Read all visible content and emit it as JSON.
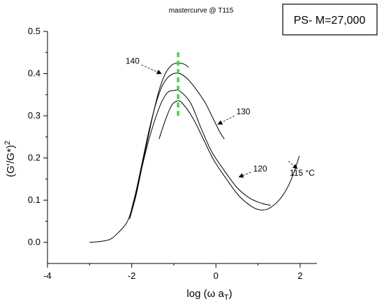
{
  "chart_data": {
    "type": "line",
    "title": "mastercurve @ T115",
    "box_label": "PS- M=27,000",
    "xlabel": {
      "main": "log (ω a",
      "sub": "T",
      "close": ")"
    },
    "ylabel": {
      "main": "(G'/G*)",
      "sup": "2"
    },
    "xlim": [
      -4,
      2.4
    ],
    "ylim": [
      -0.05,
      0.5
    ],
    "xticks": [
      -4,
      -2,
      0,
      2
    ],
    "xtick_labels": [
      "-4",
      "-2",
      "0",
      "2"
    ],
    "yticks": [
      0.0,
      0.1,
      0.2,
      0.3,
      0.4,
      0.5
    ],
    "ytick_labels": [
      "0.0",
      "0.1",
      "0.2",
      "0.3",
      "0.4",
      "0.5"
    ],
    "grid": false,
    "series": [
      {
        "name": "140",
        "color": "#000000",
        "points": [
          [
            -3.0,
            0.0
          ],
          [
            -2.75,
            0.002
          ],
          [
            -2.5,
            0.008
          ],
          [
            -2.3,
            0.025
          ],
          [
            -2.1,
            0.05
          ],
          [
            -1.95,
            0.095
          ],
          [
            -1.8,
            0.16
          ],
          [
            -1.65,
            0.23
          ],
          [
            -1.5,
            0.3
          ],
          [
            -1.35,
            0.36
          ],
          [
            -1.2,
            0.4
          ],
          [
            -1.05,
            0.42
          ],
          [
            -0.9,
            0.425
          ],
          [
            -0.75,
            0.422
          ],
          [
            -0.65,
            0.415
          ]
        ]
      },
      {
        "name": "130",
        "color": "#000000",
        "points": [
          [
            -2.05,
            0.06
          ],
          [
            -1.9,
            0.12
          ],
          [
            -1.75,
            0.19
          ],
          [
            -1.6,
            0.26
          ],
          [
            -1.45,
            0.32
          ],
          [
            -1.3,
            0.365
          ],
          [
            -1.15,
            0.39
          ],
          [
            -1.0,
            0.4
          ],
          [
            -0.85,
            0.4
          ],
          [
            -0.65,
            0.385
          ],
          [
            -0.45,
            0.36
          ],
          [
            -0.25,
            0.33
          ],
          [
            -0.05,
            0.29
          ],
          [
            0.1,
            0.26
          ],
          [
            0.2,
            0.245
          ]
        ]
      },
      {
        "name": "120",
        "color": "#000000",
        "points": [
          [
            -2.05,
            0.055
          ],
          [
            -1.9,
            0.11
          ],
          [
            -1.75,
            0.18
          ],
          [
            -1.6,
            0.24
          ],
          [
            -1.45,
            0.29
          ],
          [
            -1.3,
            0.33
          ],
          [
            -1.15,
            0.355
          ],
          [
            -1.0,
            0.36
          ],
          [
            -0.85,
            0.358
          ],
          [
            -0.6,
            0.33
          ],
          [
            -0.35,
            0.27
          ],
          [
            -0.1,
            0.215
          ],
          [
            0.2,
            0.17
          ],
          [
            0.5,
            0.13
          ],
          [
            0.8,
            0.105
          ],
          [
            1.1,
            0.092
          ],
          [
            1.3,
            0.088
          ]
        ]
      },
      {
        "name": "115 °C",
        "color": "#000000",
        "points": [
          [
            -1.35,
            0.245
          ],
          [
            -1.2,
            0.29
          ],
          [
            -1.05,
            0.325
          ],
          [
            -0.92,
            0.335
          ],
          [
            -0.8,
            0.33
          ],
          [
            -0.55,
            0.295
          ],
          [
            -0.3,
            0.245
          ],
          [
            -0.05,
            0.195
          ],
          [
            0.25,
            0.15
          ],
          [
            0.55,
            0.11
          ],
          [
            0.85,
            0.085
          ],
          [
            1.05,
            0.077
          ],
          [
            1.25,
            0.08
          ],
          [
            1.5,
            0.1
          ],
          [
            1.7,
            0.13
          ],
          [
            1.85,
            0.165
          ],
          [
            1.98,
            0.205
          ]
        ]
      }
    ],
    "reference_line": {
      "x": -0.9,
      "y_range": [
        0.3,
        0.455
      ],
      "color": "#22dd22",
      "style": "dashed"
    },
    "annotations": [
      {
        "text": "140",
        "x": -1.98,
        "y": 0.43,
        "arrow_to": [
          -1.3,
          0.4
        ]
      },
      {
        "text": "130",
        "x": 0.65,
        "y": 0.31,
        "arrow_to": [
          0.05,
          0.28
        ]
      },
      {
        "text": "120",
        "x": 1.05,
        "y": 0.175,
        "arrow_to": [
          0.55,
          0.155
        ]
      },
      {
        "text": "115 °C",
        "x": 2.05,
        "y": 0.165,
        "arrow_to": [
          1.93,
          0.175
        ]
      }
    ]
  }
}
